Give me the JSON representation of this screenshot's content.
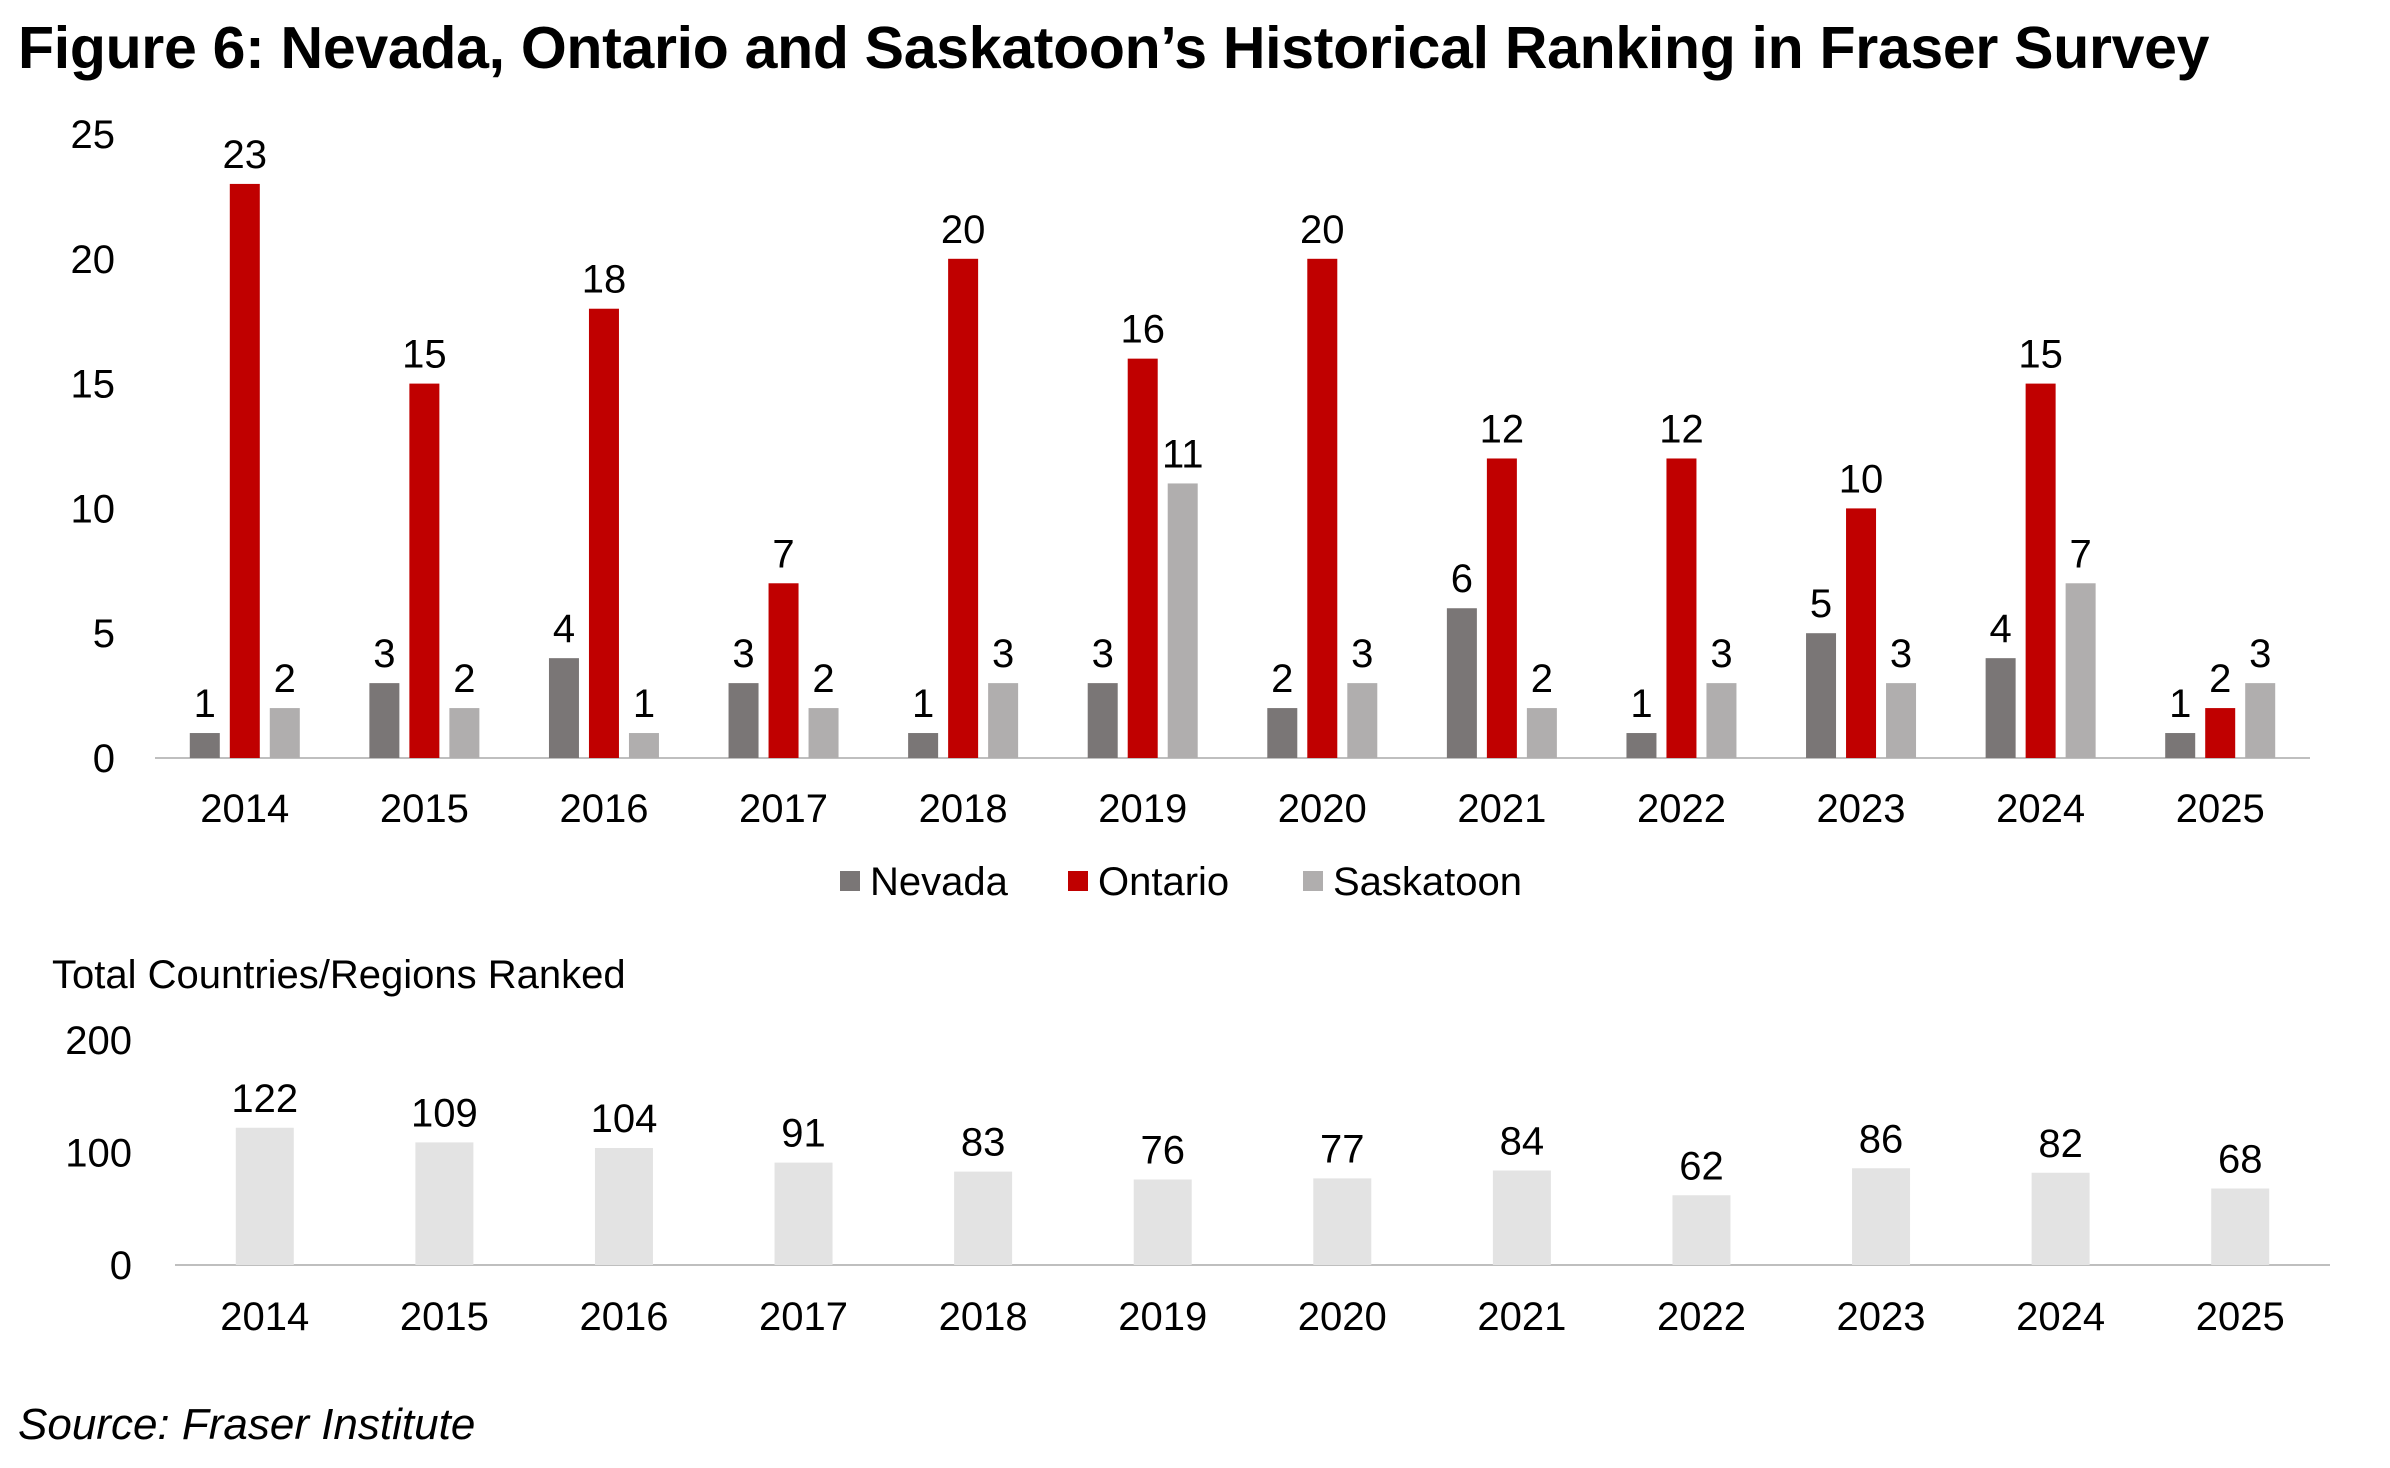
{
  "title": "Figure 6: Nevada, Ontario and Saskatoon’s Historical Ranking in Fraser Survey",
  "source": "Source: Fraser Institute",
  "chart_data": [
    {
      "type": "bar",
      "title": "",
      "xlabel": "",
      "ylabel": "",
      "categories": [
        "2014",
        "2015",
        "2016",
        "2017",
        "2018",
        "2019",
        "2020",
        "2021",
        "2022",
        "2023",
        "2024",
        "2025"
      ],
      "ylim": [
        0,
        25
      ],
      "yticks": [
        0,
        5,
        10,
        15,
        20,
        25
      ],
      "legend": "bottom-center",
      "series": [
        {
          "name": "Nevada",
          "color": "#7a7676",
          "values": [
            1,
            3,
            4,
            3,
            1,
            3,
            2,
            6,
            1,
            5,
            4,
            1
          ]
        },
        {
          "name": "Ontario",
          "color": "#c00000",
          "values": [
            23,
            15,
            18,
            7,
            20,
            16,
            20,
            12,
            12,
            10,
            15,
            2
          ]
        },
        {
          "name": "Saskatoon",
          "color": "#b0aeae",
          "values": [
            2,
            2,
            1,
            2,
            3,
            11,
            3,
            2,
            3,
            3,
            7,
            3
          ]
        }
      ]
    },
    {
      "type": "bar",
      "title": "Total Countries/Regions Ranked",
      "xlabel": "",
      "ylabel": "",
      "categories": [
        "2014",
        "2015",
        "2016",
        "2017",
        "2018",
        "2019",
        "2020",
        "2021",
        "2022",
        "2023",
        "2024",
        "2025"
      ],
      "ylim": [
        0,
        200
      ],
      "yticks": [
        0,
        100,
        200
      ],
      "legend": "none",
      "series": [
        {
          "name": "Total Countries/Regions Ranked",
          "color": "#e3e3e3",
          "values": [
            122,
            109,
            104,
            91,
            83,
            76,
            77,
            84,
            62,
            86,
            82,
            68
          ]
        }
      ]
    }
  ]
}
